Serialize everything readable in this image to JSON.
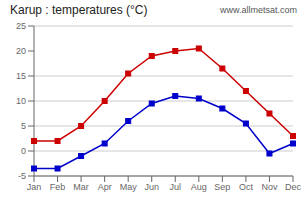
{
  "chart_data": {
    "type": "line",
    "title": "Karup : temperatures (°C)",
    "annotations": [
      "www.allmetsat.com"
    ],
    "categories": [
      "Jan",
      "Feb",
      "Mar",
      "Apr",
      "May",
      "Jun",
      "Jul",
      "Aug",
      "Sep",
      "Oct",
      "Nov",
      "Dec"
    ],
    "series": [
      {
        "color": "#cc0000",
        "values": [
          2,
          2,
          5,
          10,
          15.5,
          19,
          20,
          20.5,
          16.5,
          12,
          7.5,
          3
        ]
      },
      {
        "color": "#0000cc",
        "values": [
          -3.5,
          -3.5,
          -1,
          1.5,
          6,
          9.5,
          11,
          10.5,
          8.5,
          5.5,
          -0.5,
          1.5
        ]
      }
    ],
    "ylim": [
      -5,
      25
    ],
    "yticks": [
      -5,
      0,
      5,
      10,
      15,
      20,
      25
    ],
    "grid": true,
    "marker": "square"
  }
}
